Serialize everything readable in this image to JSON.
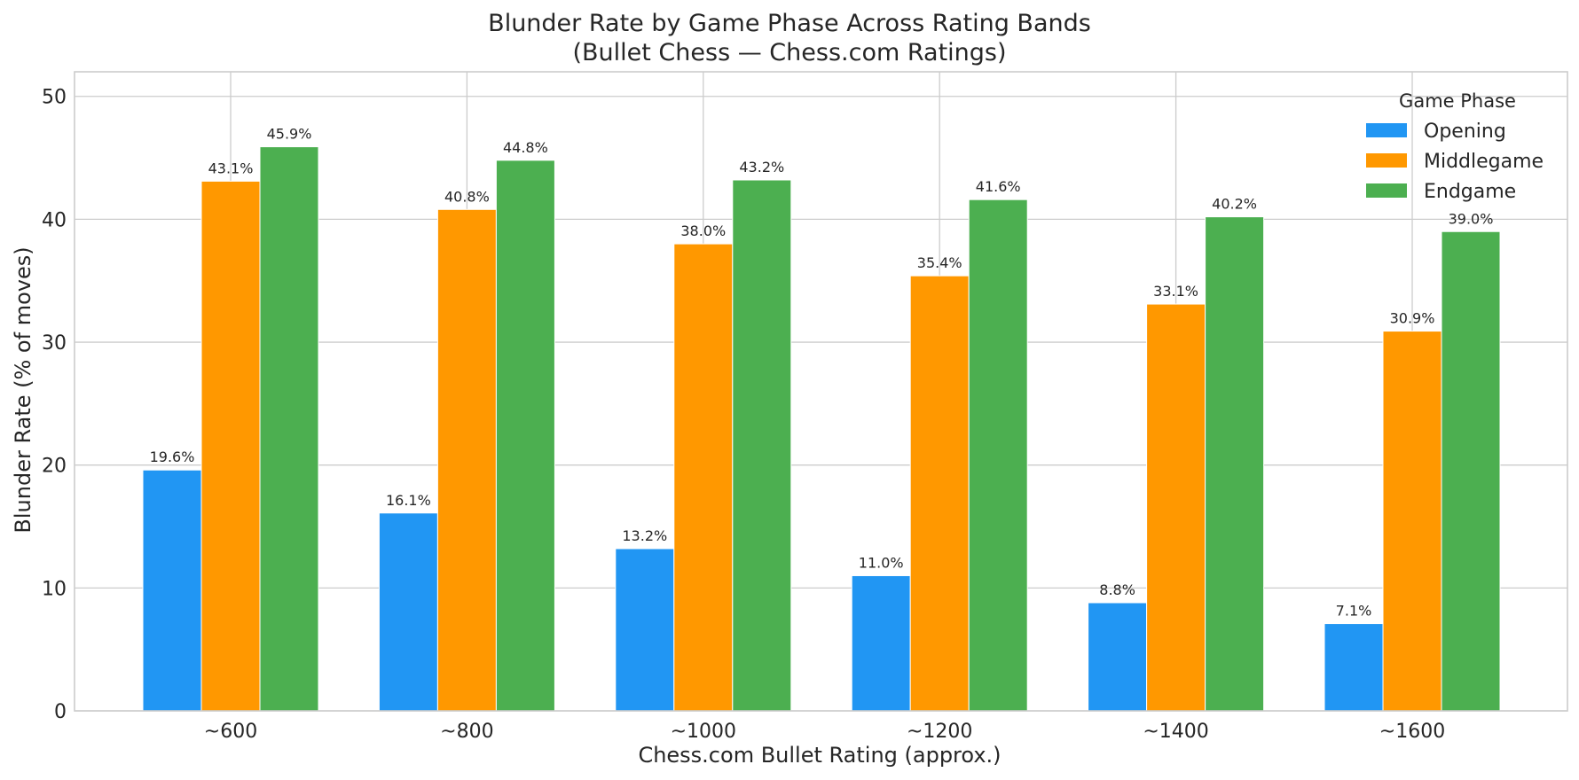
{
  "chart_data": {
    "type": "bar",
    "title": "Blunder Rate by Game Phase Across Rating Bands",
    "subtitle": "(Bullet Chess — Chess.com Ratings)",
    "xlabel": "Chess.com Bullet Rating (approx.)",
    "ylabel": "Blunder Rate (% of moves)",
    "categories": [
      "~600",
      "~800",
      "~1000",
      "~1200",
      "~1400",
      "~1600"
    ],
    "ylim": [
      0,
      52
    ],
    "yticks": [
      0,
      10,
      20,
      30,
      40,
      50
    ],
    "grid": true,
    "legend": {
      "title": "Game Phase",
      "placement": "top-right"
    },
    "series": [
      {
        "name": "Opening",
        "color": "#2196F3",
        "values": [
          19.6,
          16.1,
          13.2,
          11.0,
          8.8,
          7.1
        ],
        "labels": [
          "19.6%",
          "16.1%",
          "13.2%",
          "11.0%",
          "8.8%",
          "7.1%"
        ]
      },
      {
        "name": "Middlegame",
        "color": "#FF9800",
        "values": [
          43.1,
          40.8,
          38.0,
          35.4,
          33.1,
          30.9
        ],
        "labels": [
          "43.1%",
          "40.8%",
          "38.0%",
          "35.4%",
          "33.1%",
          "30.9%"
        ]
      },
      {
        "name": "Endgame",
        "color": "#4CAF50",
        "values": [
          45.9,
          44.8,
          43.2,
          41.6,
          40.2,
          39.0
        ],
        "labels": [
          "45.9%",
          "44.8%",
          "43.2%",
          "41.6%",
          "40.2%",
          "39.0%"
        ]
      }
    ]
  }
}
